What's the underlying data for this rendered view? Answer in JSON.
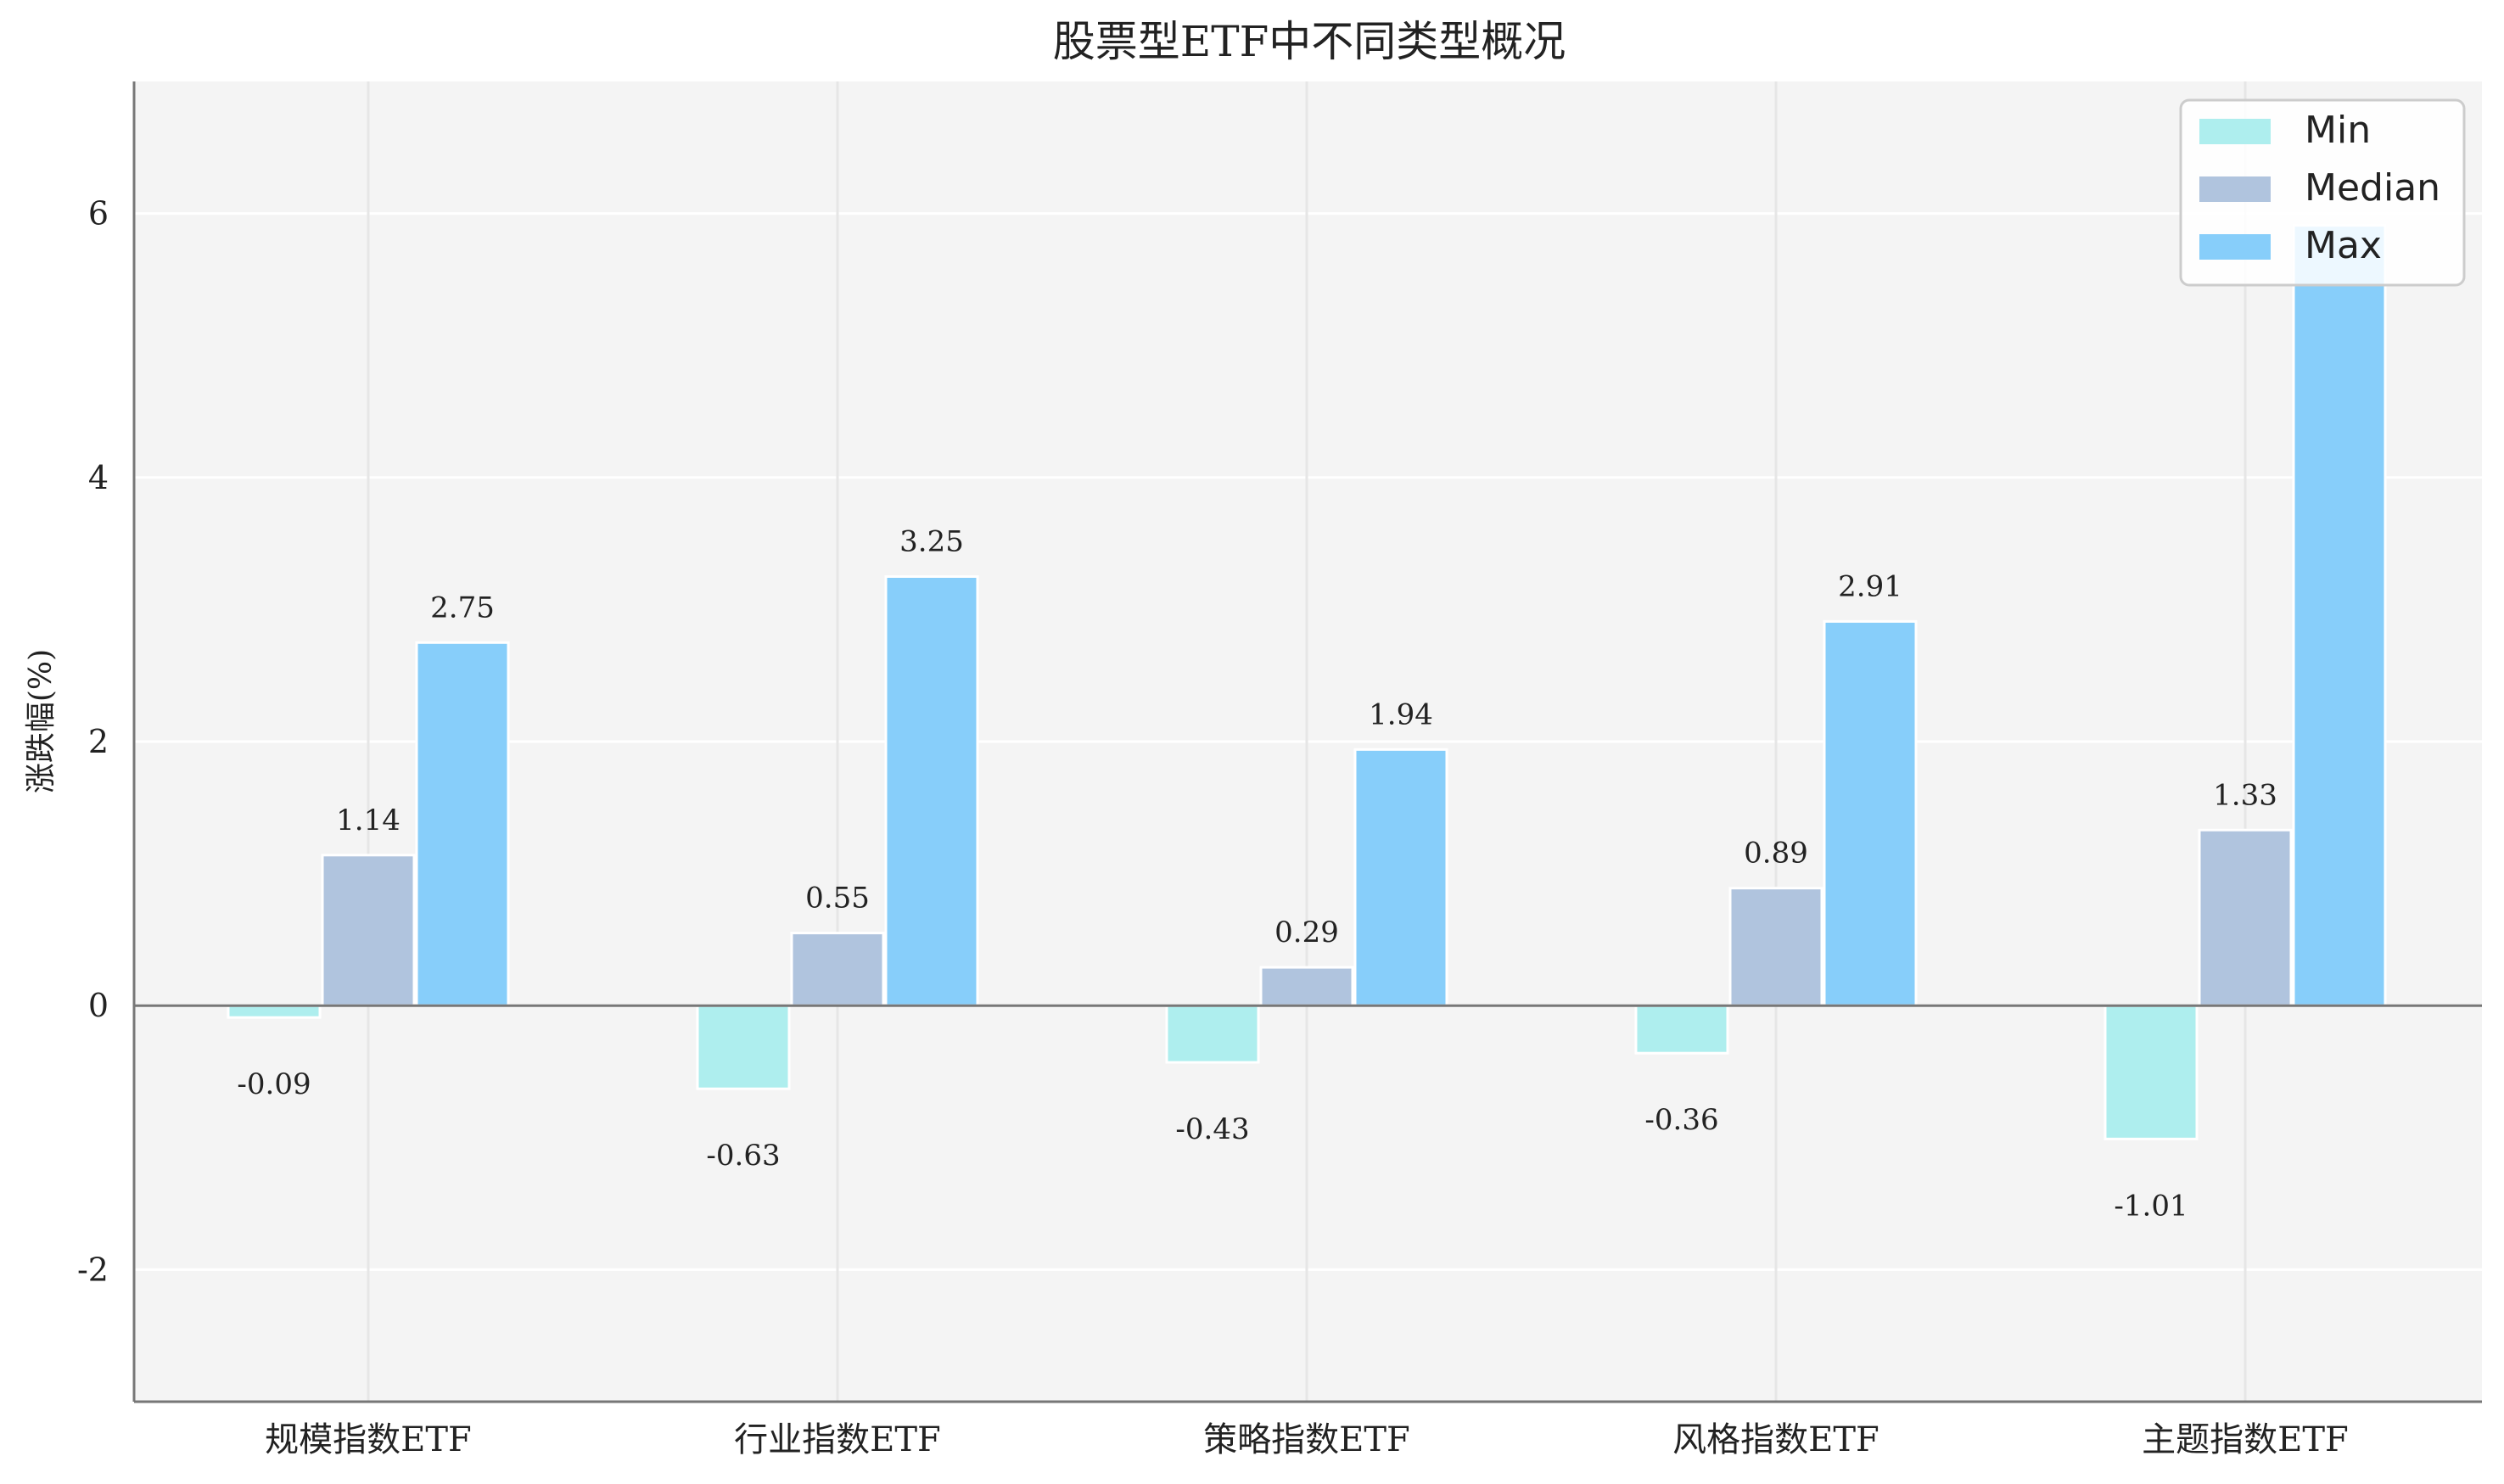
{
  "chart_data": {
    "type": "bar",
    "title": "股票型ETF中不同类型概况",
    "xlabel": "",
    "ylabel": "涨跌幅(%)",
    "categories": [
      "规模指数ETF",
      "行业指数ETF",
      "策略指数ETF",
      "风格指数ETF",
      "主题指数ETF"
    ],
    "series": [
      {
        "name": "Min",
        "values": [
          -0.09,
          -0.63,
          -0.43,
          -0.36,
          -1.01
        ],
        "color": "#aeeeee"
      },
      {
        "name": "Median",
        "values": [
          1.14,
          0.55,
          0.29,
          0.89,
          1.33
        ],
        "color": "#b0c4de"
      },
      {
        "name": "Max",
        "values": [
          2.75,
          3.25,
          1.94,
          2.91,
          5.91
        ],
        "color": "#87cefa"
      }
    ],
    "data_labels": [
      [
        "-0.09",
        "-0.63",
        "-0.43",
        "-0.36",
        "-1.01"
      ],
      [
        "1.14",
        "0.55",
        "0.29",
        "0.89",
        "1.33"
      ],
      [
        "2.75",
        "3.25",
        "1.94",
        "2.91",
        ""
      ]
    ],
    "ylim": [
      -3.0,
      7.0
    ],
    "yticks": [
      -2,
      0,
      2,
      4,
      6
    ],
    "ytick_labels": [
      "-2",
      "0",
      "2",
      "4",
      "6"
    ],
    "grid": true,
    "legend": "top-right",
    "plot_background": "#f4f4f4",
    "axis_color": "#777777"
  }
}
